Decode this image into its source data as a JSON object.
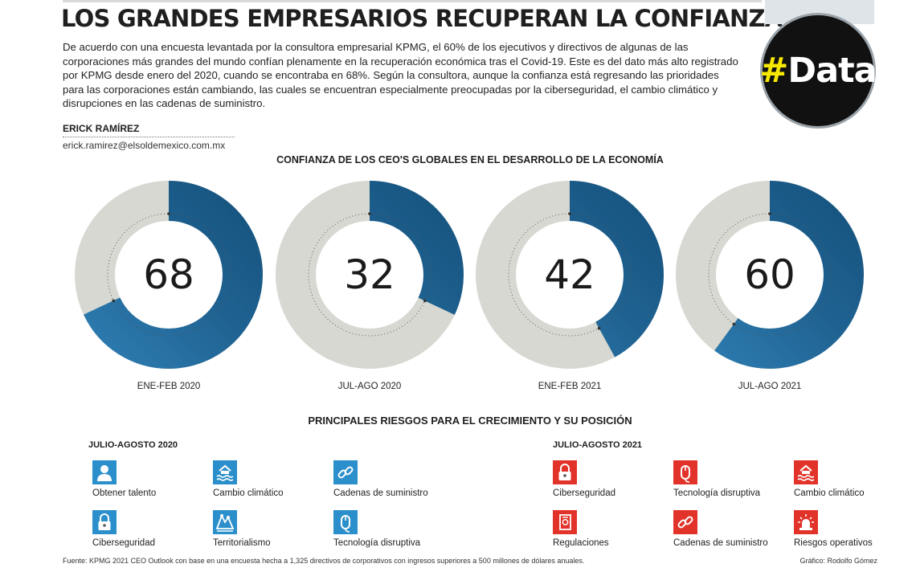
{
  "header": {
    "title": "LOS GRANDES EMPRESARIOS RECUPERAN LA CONFIANZA",
    "intro": "De acuerdo con una encuesta levantada por la consultora empresarial KPMG, el 60% de los ejecutivos y directivos de algunas de las corporaciones más grandes del mundo confían plenamente en la recuperación económica tras el Covid-19. Este es del dato más alto registrado por KPMG desde enero del 2020, cuando se encontraba en 68%. Según la consultora, aunque la confianza está regresando las prioridades para las corporaciones están cambiando, las cuales se encuentran especialmente preocupadas por la ciberseguridad, el cambio climático y disrupciones en las cadenas de suministro.",
    "badge_hash": "#",
    "badge_word": "Data"
  },
  "author": {
    "name": "ERICK RAMÍREZ",
    "email": "erick.ramirez@elsoldemexico.com.mx"
  },
  "chart_data": {
    "type": "pie",
    "title": "CONFIANZA DE LOS CEO'S GLOBALES EN EL DESARROLLO DE LA ECONOMÍA",
    "unit": "percent",
    "categories": [
      "ENE-FEB 2020",
      "JUL-AGO 2020",
      "ENE-FEB 2021",
      "JUL-AGO 2021"
    ],
    "values": [
      68,
      32,
      42,
      60
    ],
    "labels": [
      "68",
      "32",
      "42",
      "60"
    ],
    "total": 100,
    "colors": {
      "value": "#1f6291",
      "remainder": "#d6d8d1"
    }
  },
  "risks": {
    "title": "PRINCIPALES RIESGOS PARA EL CRECIMIENTO Y SU POSICIÓN",
    "periods": [
      {
        "label": "JULIO-AGOSTO 2020",
        "color": "#2b8fcb",
        "items": [
          {
            "label": "Obtener talento",
            "icon": "person-icon"
          },
          {
            "label": "Cambio climático",
            "icon": "climate-icon"
          },
          {
            "label": "Cadenas de suministro",
            "icon": "chain-icon"
          },
          {
            "label": "Ciberseguridad",
            "icon": "lock-icon"
          },
          {
            "label": "Territorialismo",
            "icon": "territory-icon"
          },
          {
            "label": "Tecnología disruptiva",
            "icon": "mouse-icon"
          }
        ]
      },
      {
        "label": "JULIO-AGOSTO 2021",
        "color": "#e2332a",
        "items": [
          {
            "label": "Ciberseguridad",
            "icon": "lock-icon"
          },
          {
            "label": "Tecnología disruptiva",
            "icon": "mouse-icon"
          },
          {
            "label": "Cambio climático",
            "icon": "climate-icon"
          },
          {
            "label": "Regulaciones",
            "icon": "document-icon"
          },
          {
            "label": "Cadenas de suministro",
            "icon": "chain-icon"
          },
          {
            "label": "Riesgos operativos",
            "icon": "alarm-icon"
          }
        ]
      }
    ]
  },
  "footer": {
    "source": "Fuente: KPMG 2021 CEO Outlook con base en una encuesta hecha a 1,325 directivos de corporativos con ingresos superiores a 500 millones de dólares anuales.",
    "credit": "Gráfico: Rodolfo Gómez"
  }
}
